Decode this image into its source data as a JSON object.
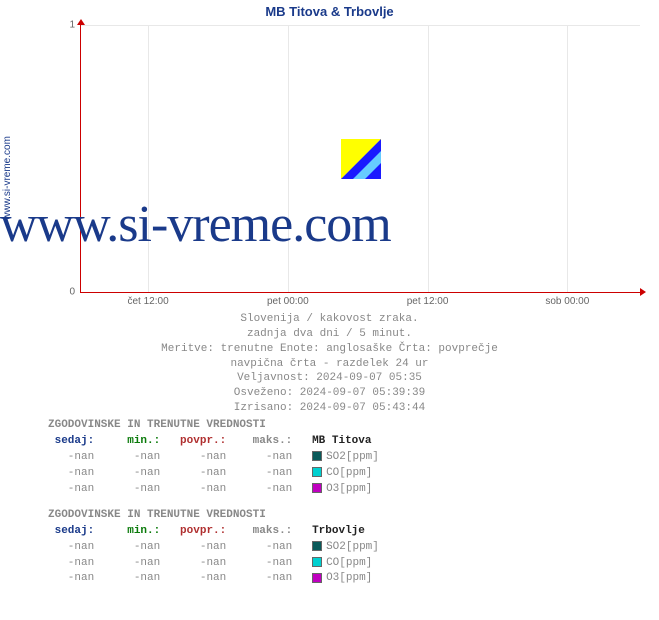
{
  "title": "MB Titova & Trbovlje",
  "ylabel_site": "www.si-vreme.com",
  "watermark": "www.si-vreme.com",
  "chart": {
    "type": "line",
    "ylim": [
      0,
      1
    ],
    "yticks": [
      0,
      1
    ],
    "xticks": [
      "čet 12:00",
      "pet 00:00",
      "pet 12:00",
      "sob 00:00"
    ],
    "axis_color": "#c00",
    "grid_color": "#e8e8e8",
    "background_color": "#ffffff",
    "center_icon_colors": {
      "top_left": "#ffff00",
      "diag": "#66ccff",
      "bot_right": "#1a1aff"
    }
  },
  "meta": {
    "line1": "Slovenija / kakovost zraka.",
    "line2": "zadnja dva dni / 5 minut.",
    "line3": "Meritve: trenutne  Enote: anglosaške  Črta: povprečje",
    "line4": "navpična črta - razdelek 24 ur",
    "line5": "Veljavnost: 2024-09-07 05:35",
    "line6": "Osveženo: 2024-09-07 05:39:39",
    "line7": "Izrisano: 2024-09-07 05:43:44"
  },
  "table_header_label": "ZGODOVINSKE IN TRENUTNE VREDNOSTI",
  "columns": {
    "sedaj": "sedaj",
    "min": "min",
    "povpr": "povpr",
    "maks": "maks"
  },
  "stations": [
    {
      "name": "MB Titova",
      "rows": [
        {
          "sedaj": "-nan",
          "min": "-nan",
          "povpr": "-nan",
          "maks": "-nan",
          "param": "SO2[ppm]",
          "swatch": "#0a5a5a"
        },
        {
          "sedaj": "-nan",
          "min": "-nan",
          "povpr": "-nan",
          "maks": "-nan",
          "param": "CO[ppm]",
          "swatch": "#00d0d0"
        },
        {
          "sedaj": "-nan",
          "min": "-nan",
          "povpr": "-nan",
          "maks": "-nan",
          "param": "O3[ppm]",
          "swatch": "#c000c0"
        }
      ]
    },
    {
      "name": "Trbovlje",
      "rows": [
        {
          "sedaj": "-nan",
          "min": "-nan",
          "povpr": "-nan",
          "maks": "-nan",
          "param": "SO2[ppm]",
          "swatch": "#0a5a5a"
        },
        {
          "sedaj": "-nan",
          "min": "-nan",
          "povpr": "-nan",
          "maks": "-nan",
          "param": "CO[ppm]",
          "swatch": "#00d0d0"
        },
        {
          "sedaj": "-nan",
          "min": "-nan",
          "povpr": "-nan",
          "maks": "-nan",
          "param": "O3[ppm]",
          "swatch": "#c000c0"
        }
      ]
    }
  ]
}
